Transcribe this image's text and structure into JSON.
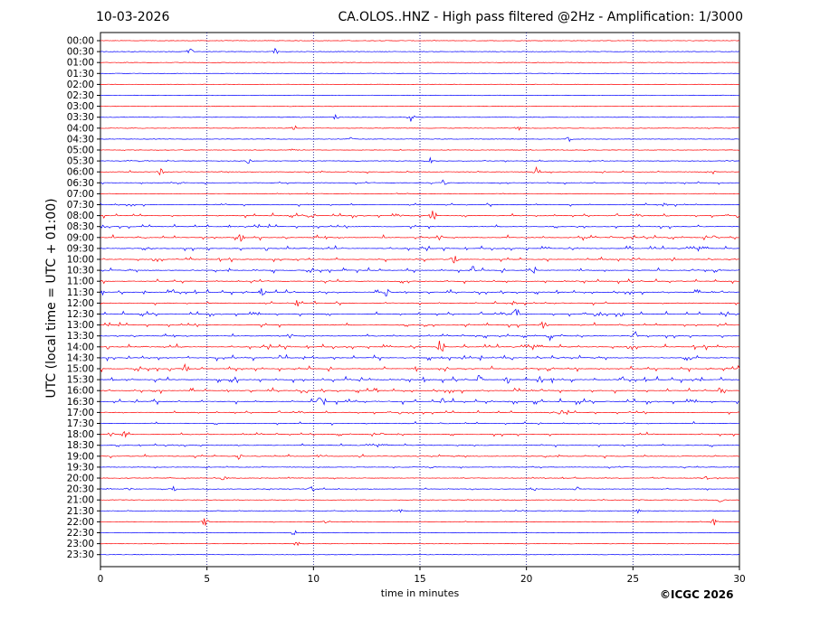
{
  "header": {
    "date": "10-03-2026",
    "title": "CA.OLOS..HNZ - High pass filtered @2Hz - Amplification: 1/3000"
  },
  "credit": "©ICGC 2026",
  "colors": {
    "odd_row": "#ff0000",
    "even_row": "#0000ff",
    "grid": "#000080"
  },
  "chart_data": {
    "type": "line",
    "chart_kind": "helicorder seismogram",
    "xlabel": "time in minutes",
    "ylabel": "UTC (local time = UTC + 01:00)",
    "xlim": [
      0,
      30
    ],
    "x_ticks": [
      0,
      5,
      10,
      15,
      20,
      25,
      30
    ],
    "vertical_grid_minutes": [
      5,
      10,
      15,
      20,
      25
    ],
    "grid": "vertical dotted lines every 5 minutes",
    "row_labels": [
      "00:00",
      "00:30",
      "01:00",
      "01:30",
      "02:00",
      "02:30",
      "03:00",
      "03:30",
      "04:00",
      "04:30",
      "05:00",
      "05:30",
      "06:00",
      "06:30",
      "07:00",
      "07:30",
      "08:00",
      "08:30",
      "09:00",
      "09:30",
      "10:00",
      "10:30",
      "11:00",
      "11:30",
      "12:00",
      "12:30",
      "13:00",
      "13:30",
      "14:00",
      "14:30",
      "15:00",
      "15:30",
      "16:00",
      "16:30",
      "17:00",
      "17:30",
      "18:00",
      "18:30",
      "19:00",
      "19:30",
      "20:00",
      "20:30",
      "21:00",
      "21:30",
      "22:00",
      "22:30",
      "23:00",
      "23:30"
    ],
    "trace_colors_cycle": [
      "red",
      "blue"
    ],
    "noise_level_by_row": [
      0.3,
      0.3,
      0.2,
      0.2,
      0.2,
      0.2,
      0.2,
      0.4,
      0.4,
      0.4,
      0.5,
      0.8,
      1.2,
      1.4,
      0.6,
      1.6,
      2.2,
      2.0,
      2.4,
      2.2,
      2.0,
      2.4,
      2.2,
      2.4,
      1.8,
      2.4,
      2.2,
      2.0,
      2.4,
      2.6,
      2.6,
      2.8,
      2.6,
      2.6,
      1.8,
      1.6,
      1.8,
      1.4,
      1.6,
      1.2,
      0.9,
      1.0,
      0.6,
      0.7,
      0.6,
      0.3,
      0.3,
      0.2
    ],
    "events": [
      {
        "row": "00:30",
        "minute": 4.2,
        "amp": 3
      },
      {
        "row": "00:30",
        "minute": 8.2,
        "amp": 4
      },
      {
        "row": "03:30",
        "minute": 11.1,
        "amp": 4
      },
      {
        "row": "03:30",
        "minute": 14.6,
        "amp": 5
      },
      {
        "row": "04:00",
        "minute": 9.1,
        "amp": 3
      },
      {
        "row": "04:00",
        "minute": 19.6,
        "amp": 3
      },
      {
        "row": "04:30",
        "minute": 11.7,
        "amp": 3
      },
      {
        "row": "04:30",
        "minute": 22.0,
        "amp": 3
      },
      {
        "row": "05:00",
        "minute": 9.1,
        "amp": 3
      },
      {
        "row": "05:30",
        "minute": 7.0,
        "amp": 4
      },
      {
        "row": "05:30",
        "minute": 15.5,
        "amp": 4
      },
      {
        "row": "06:00",
        "minute": 2.8,
        "amp": 4
      },
      {
        "row": "06:00",
        "minute": 20.5,
        "amp": 6
      },
      {
        "row": "06:00",
        "minute": 28.7,
        "amp": 4
      },
      {
        "row": "06:30",
        "minute": 16.1,
        "amp": 5
      },
      {
        "row": "08:00",
        "minute": 9.9,
        "amp": 6
      },
      {
        "row": "08:00",
        "minute": 15.6,
        "amp": 6
      },
      {
        "row": "09:00",
        "minute": 6.6,
        "amp": 5
      },
      {
        "row": "10:00",
        "minute": 16.6,
        "amp": 4
      },
      {
        "row": "10:30",
        "minute": 17.5,
        "amp": 5
      },
      {
        "row": "10:30",
        "minute": 20.3,
        "amp": 6
      },
      {
        "row": "11:30",
        "minute": 7.6,
        "amp": 5
      },
      {
        "row": "11:30",
        "minute": 13.4,
        "amp": 5
      },
      {
        "row": "12:00",
        "minute": 9.2,
        "amp": 5
      },
      {
        "row": "12:30",
        "minute": 19.5,
        "amp": 8
      },
      {
        "row": "12:30",
        "minute": 24.4,
        "amp": 4
      },
      {
        "row": "13:00",
        "minute": 20.8,
        "amp": 5
      },
      {
        "row": "13:30",
        "minute": 21.1,
        "amp": 5
      },
      {
        "row": "13:30",
        "minute": 25.1,
        "amp": 6
      },
      {
        "row": "14:00",
        "minute": 16.0,
        "amp": 10
      },
      {
        "row": "15:00",
        "minute": 4.0,
        "amp": 5
      },
      {
        "row": "15:30",
        "minute": 17.8,
        "amp": 5
      },
      {
        "row": "15:30",
        "minute": 19.1,
        "amp": 4
      },
      {
        "row": "16:00",
        "minute": 29.2,
        "amp": 5
      },
      {
        "row": "16:30",
        "minute": 10.3,
        "amp": 5
      },
      {
        "row": "16:30",
        "minute": 16.1,
        "amp": 4
      },
      {
        "row": "17:00",
        "minute": 21.6,
        "amp": 3
      },
      {
        "row": "18:00",
        "minute": 1.1,
        "amp": 4
      },
      {
        "row": "19:00",
        "minute": 6.5,
        "amp": 4
      },
      {
        "row": "20:00",
        "minute": 5.8,
        "amp": 3
      },
      {
        "row": "20:00",
        "minute": 28.4,
        "amp": 3
      },
      {
        "row": "20:30",
        "minute": 1.3,
        "amp": 4
      },
      {
        "row": "20:30",
        "minute": 3.4,
        "amp": 3
      },
      {
        "row": "20:30",
        "minute": 9.9,
        "amp": 4
      },
      {
        "row": "20:30",
        "minute": 20.3,
        "amp": 4
      },
      {
        "row": "20:30",
        "minute": 22.4,
        "amp": 3
      },
      {
        "row": "21:00",
        "minute": 29.1,
        "amp": 3
      },
      {
        "row": "21:30",
        "minute": 14.1,
        "amp": 3
      },
      {
        "row": "21:30",
        "minute": 25.3,
        "amp": 3
      },
      {
        "row": "22:00",
        "minute": 4.9,
        "amp": 5
      },
      {
        "row": "22:00",
        "minute": 10.6,
        "amp": 3
      },
      {
        "row": "22:00",
        "minute": 28.8,
        "amp": 4
      },
      {
        "row": "22:30",
        "minute": 9.1,
        "amp": 3
      },
      {
        "row": "23:00",
        "minute": 9.2,
        "amp": 3
      }
    ]
  }
}
